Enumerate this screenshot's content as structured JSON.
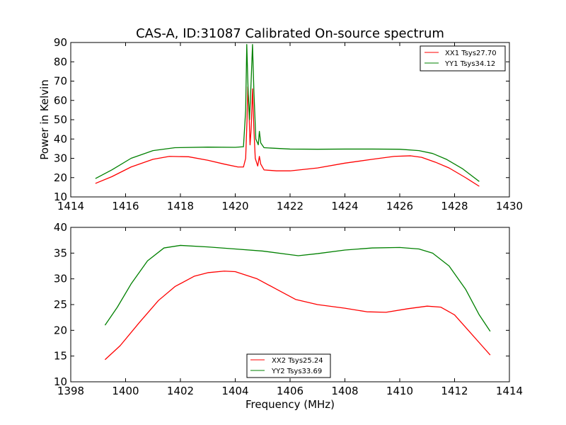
{
  "chart_data": [
    {
      "type": "line",
      "title": "CAS-A, ID:31087 Calibrated On-source spectrum",
      "xlabel": "",
      "ylabel": "Power in Kelvin",
      "xlim": [
        1414,
        1430
      ],
      "ylim": [
        10,
        90
      ],
      "xticks": [
        1414,
        1416,
        1418,
        1420,
        1422,
        1424,
        1426,
        1428,
        1430
      ],
      "yticks": [
        10,
        20,
        30,
        40,
        50,
        60,
        70,
        80,
        90
      ],
      "legend_position": "top-right",
      "grid": false,
      "series": [
        {
          "name": "XX1 Tsys27.70",
          "color": "#ff0000",
          "points": [
            [
              1414.9,
              17
            ],
            [
              1415.5,
              20.5
            ],
            [
              1416.2,
              25.5
            ],
            [
              1417,
              29.5
            ],
            [
              1417.6,
              31
            ],
            [
              1418.3,
              30.8
            ],
            [
              1419,
              29
            ],
            [
              1419.6,
              27
            ],
            [
              1420.1,
              25.5
            ],
            [
              1420.3,
              25.5
            ],
            [
              1420.38,
              30
            ],
            [
              1420.43,
              50
            ],
            [
              1420.46,
              67
            ],
            [
              1420.5,
              55
            ],
            [
              1420.54,
              37
            ],
            [
              1420.58,
              45
            ],
            [
              1420.63,
              66
            ],
            [
              1420.68,
              45
            ],
            [
              1420.73,
              30
            ],
            [
              1420.82,
              26
            ],
            [
              1420.88,
              31
            ],
            [
              1420.93,
              27
            ],
            [
              1421.05,
              24
            ],
            [
              1421.5,
              23.5
            ],
            [
              1422,
              23.5
            ],
            [
              1423,
              25
            ],
            [
              1424,
              27.5
            ],
            [
              1425,
              29.5
            ],
            [
              1425.8,
              31
            ],
            [
              1426.4,
              31.3
            ],
            [
              1426.8,
              30.5
            ],
            [
              1427.3,
              28
            ],
            [
              1427.8,
              25
            ],
            [
              1428.4,
              20
            ],
            [
              1428.9,
              15.5
            ]
          ]
        },
        {
          "name": "YY1 Tsys34.12",
          "color": "#008000",
          "points": [
            [
              1414.9,
              19.5
            ],
            [
              1415.5,
              24
            ],
            [
              1416.2,
              30
            ],
            [
              1417,
              34
            ],
            [
              1417.8,
              35.5
            ],
            [
              1419,
              35.8
            ],
            [
              1420,
              35.7
            ],
            [
              1420.3,
              36
            ],
            [
              1420.38,
              55
            ],
            [
              1420.42,
              89
            ],
            [
              1420.47,
              65
            ],
            [
              1420.52,
              50
            ],
            [
              1420.58,
              70
            ],
            [
              1420.63,
              89
            ],
            [
              1420.68,
              65
            ],
            [
              1420.75,
              40
            ],
            [
              1420.84,
              37
            ],
            [
              1420.88,
              44
            ],
            [
              1420.93,
              38
            ],
            [
              1421.05,
              35.5
            ],
            [
              1422,
              34.8
            ],
            [
              1423,
              34.7
            ],
            [
              1424,
              34.8
            ],
            [
              1425,
              34.8
            ],
            [
              1426,
              34.7
            ],
            [
              1426.7,
              34
            ],
            [
              1427.2,
              32.5
            ],
            [
              1427.7,
              29.5
            ],
            [
              1428.3,
              24.5
            ],
            [
              1428.9,
              18
            ]
          ]
        }
      ]
    },
    {
      "type": "line",
      "title": "",
      "xlabel": "Frequency (MHz)",
      "ylabel": "",
      "xlim": [
        1398,
        1414
      ],
      "ylim": [
        10,
        40
      ],
      "xticks": [
        1398,
        1400,
        1402,
        1404,
        1406,
        1408,
        1410,
        1412,
        1414
      ],
      "yticks": [
        10,
        15,
        20,
        25,
        30,
        35,
        40
      ],
      "legend_position": "bottom-center",
      "grid": false,
      "series": [
        {
          "name": "XX2 Tsys25.24",
          "color": "#ff0000",
          "points": [
            [
              1399.25,
              14.3
            ],
            [
              1399.8,
              17
            ],
            [
              1400.5,
              21.5
            ],
            [
              1401.2,
              25.8
            ],
            [
              1401.8,
              28.5
            ],
            [
              1402.5,
              30.5
            ],
            [
              1403,
              31.2
            ],
            [
              1403.6,
              31.5
            ],
            [
              1404,
              31.4
            ],
            [
              1404.8,
              30
            ],
            [
              1405.5,
              28
            ],
            [
              1406.2,
              26
            ],
            [
              1407,
              25
            ],
            [
              1408,
              24.3
            ],
            [
              1408.8,
              23.6
            ],
            [
              1409.5,
              23.5
            ],
            [
              1410.3,
              24.2
            ],
            [
              1411,
              24.7
            ],
            [
              1411.5,
              24.5
            ],
            [
              1412,
              23
            ],
            [
              1412.5,
              20
            ],
            [
              1413,
              17
            ],
            [
              1413.3,
              15.2
            ]
          ]
        },
        {
          "name": "YY2 Tsys33.69",
          "color": "#008000",
          "points": [
            [
              1399.25,
              21
            ],
            [
              1399.7,
              24.5
            ],
            [
              1400.2,
              29
            ],
            [
              1400.8,
              33.5
            ],
            [
              1401.4,
              36
            ],
            [
              1402,
              36.5
            ],
            [
              1403,
              36.2
            ],
            [
              1404,
              35.8
            ],
            [
              1405,
              35.4
            ],
            [
              1406,
              34.7
            ],
            [
              1406.3,
              34.5
            ],
            [
              1407,
              34.9
            ],
            [
              1408,
              35.6
            ],
            [
              1409,
              36
            ],
            [
              1410,
              36.1
            ],
            [
              1410.7,
              35.8
            ],
            [
              1411.2,
              35
            ],
            [
              1411.8,
              32.5
            ],
            [
              1412.4,
              28
            ],
            [
              1412.9,
              23
            ],
            [
              1413.3,
              19.8
            ]
          ]
        }
      ]
    }
  ]
}
